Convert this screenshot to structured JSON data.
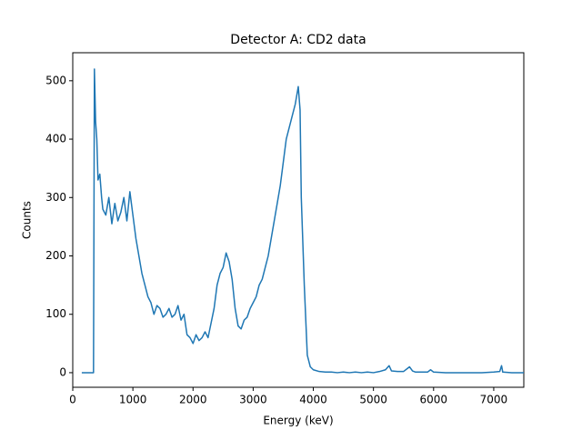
{
  "chart_data": {
    "type": "line",
    "title": "Detector A: CD2 data",
    "x_label": "Energy (keV)",
    "y_label": "Counts",
    "x": [
      150,
      200,
      250,
      300,
      345,
      360,
      380,
      400,
      420,
      450,
      480,
      500,
      550,
      600,
      650,
      700,
      750,
      800,
      850,
      900,
      950,
      1000,
      1050,
      1100,
      1150,
      1200,
      1250,
      1300,
      1350,
      1400,
      1450,
      1500,
      1550,
      1600,
      1650,
      1700,
      1750,
      1800,
      1850,
      1900,
      1950,
      2000,
      2050,
      2100,
      2150,
      2200,
      2250,
      2300,
      2350,
      2400,
      2450,
      2500,
      2550,
      2600,
      2650,
      2700,
      2750,
      2800,
      2850,
      2900,
      2950,
      3000,
      3050,
      3100,
      3150,
      3200,
      3250,
      3300,
      3350,
      3400,
      3450,
      3500,
      3550,
      3600,
      3650,
      3700,
      3750,
      3780,
      3800,
      3850,
      3900,
      3950,
      4000,
      4100,
      4200,
      4300,
      4400,
      4500,
      4600,
      4700,
      4800,
      4900,
      5000,
      5100,
      5200,
      5260,
      5300,
      5400,
      5500,
      5600,
      5650,
      5700,
      5800,
      5900,
      5950,
      6000,
      6200,
      6400,
      6600,
      6800,
      7000,
      7100,
      7130,
      7150,
      7300,
      7500
    ],
    "series": [
      {
        "color": "#1f77b4",
        "values": [
          0,
          0,
          0,
          0,
          0,
          520,
          430,
          400,
          330,
          340,
          300,
          280,
          270,
          300,
          255,
          290,
          260,
          275,
          300,
          260,
          310,
          270,
          230,
          200,
          170,
          150,
          130,
          120,
          100,
          115,
          110,
          95,
          100,
          110,
          95,
          100,
          115,
          90,
          100,
          65,
          60,
          50,
          65,
          55,
          60,
          70,
          60,
          85,
          110,
          150,
          170,
          180,
          205,
          190,
          160,
          110,
          80,
          75,
          90,
          95,
          110,
          120,
          130,
          150,
          160,
          180,
          200,
          230,
          260,
          290,
          320,
          360,
          400,
          420,
          440,
          460,
          490,
          450,
          300,
          150,
          30,
          10,
          5,
          2,
          1,
          1,
          0,
          1,
          0,
          1,
          0,
          1,
          0,
          2,
          5,
          12,
          3,
          2,
          2,
          10,
          3,
          1,
          1,
          1,
          5,
          1,
          0,
          0,
          0,
          0,
          1,
          2,
          12,
          1,
          0,
          0
        ]
      }
    ],
    "xlim": [
      0,
      7500
    ],
    "ylim": [
      -25,
      548
    ],
    "xticks": [
      0,
      1000,
      2000,
      3000,
      4000,
      5000,
      6000,
      7000
    ],
    "yticks": [
      0,
      100,
      200,
      300,
      400,
      500
    ]
  }
}
